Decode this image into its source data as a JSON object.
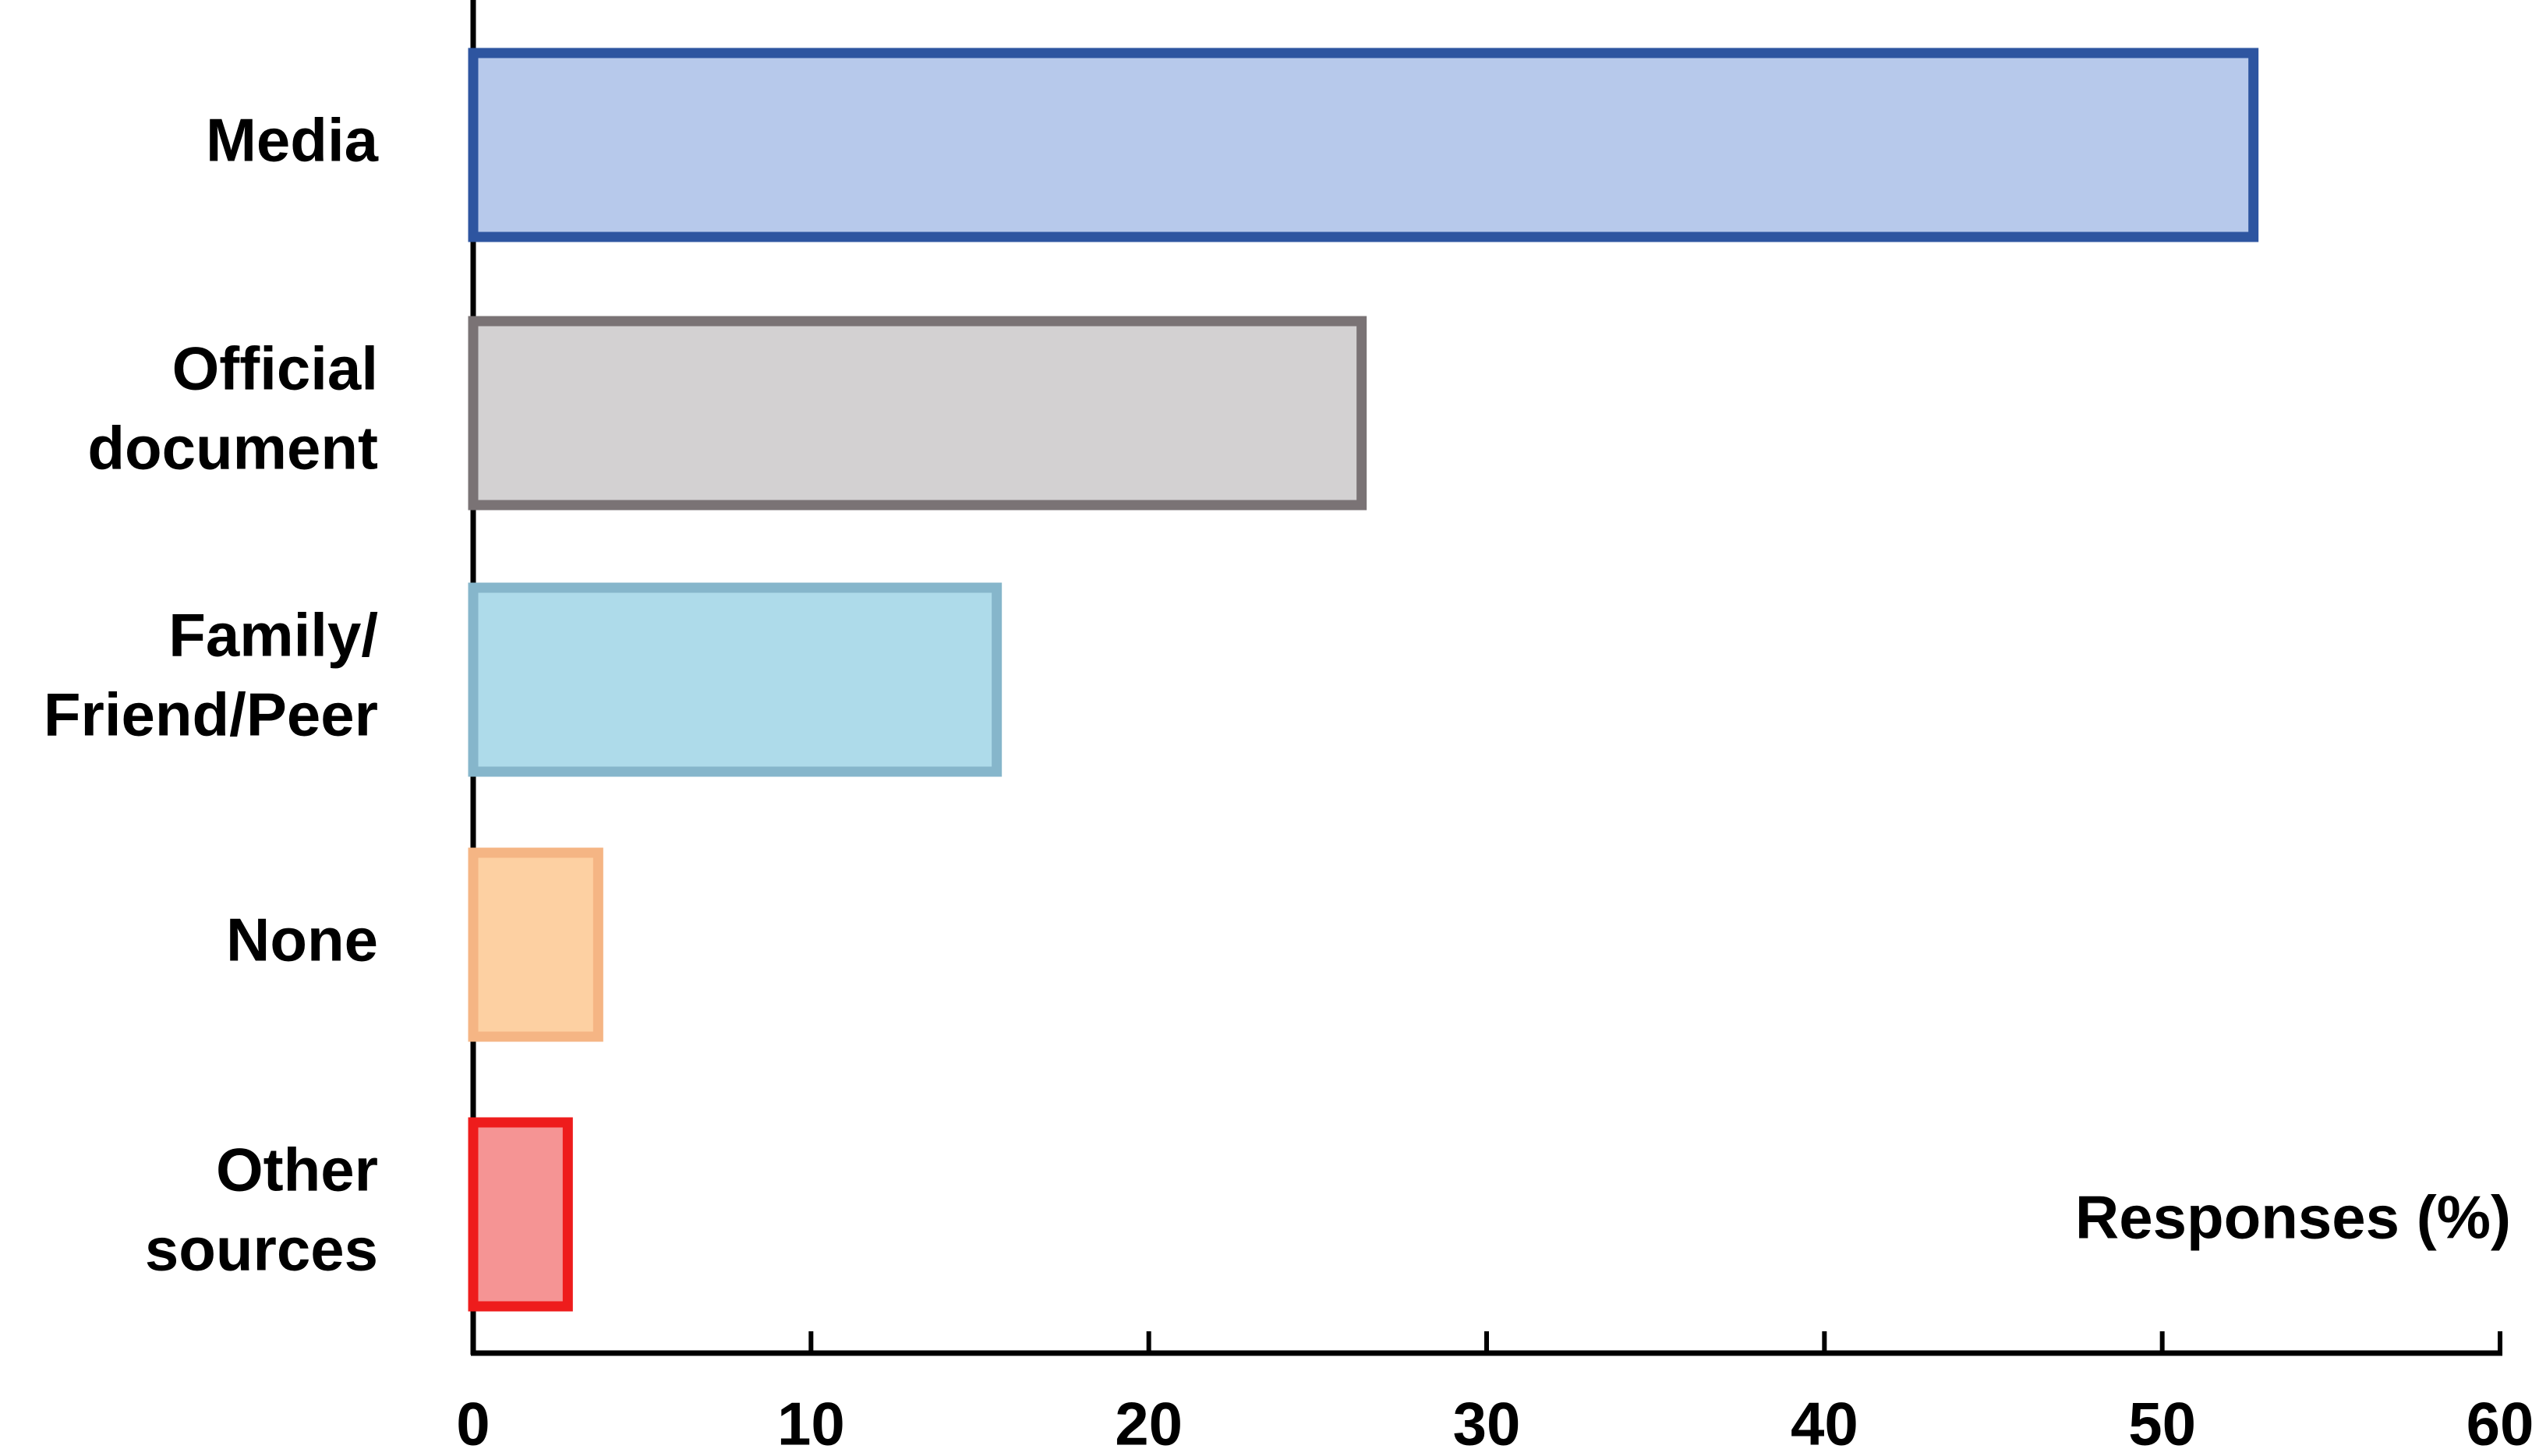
{
  "chart_data": {
    "type": "barh",
    "categories": [
      [
        "Media"
      ],
      [
        "Official",
        "document"
      ],
      [
        "Family/",
        "Friend/Peer"
      ],
      [
        "None"
      ],
      [
        "Other",
        "sources"
      ]
    ],
    "values": [
      52.7,
      26.3,
      15.5,
      3.7,
      2.8
    ],
    "colors": [
      "#b7c9eb",
      "#d3d1d2",
      "#aedbea",
      "#fdd0a2",
      "#f59494"
    ],
    "edge_colors": [
      "#2e55a0",
      "#7a7375",
      "#86b6cb",
      "#f5b584",
      "#ee1c1c"
    ],
    "xlabel": "Responses (%)",
    "xlim": [
      0,
      60
    ],
    "xticks": [
      0,
      10,
      20,
      30,
      40,
      50,
      60
    ]
  }
}
